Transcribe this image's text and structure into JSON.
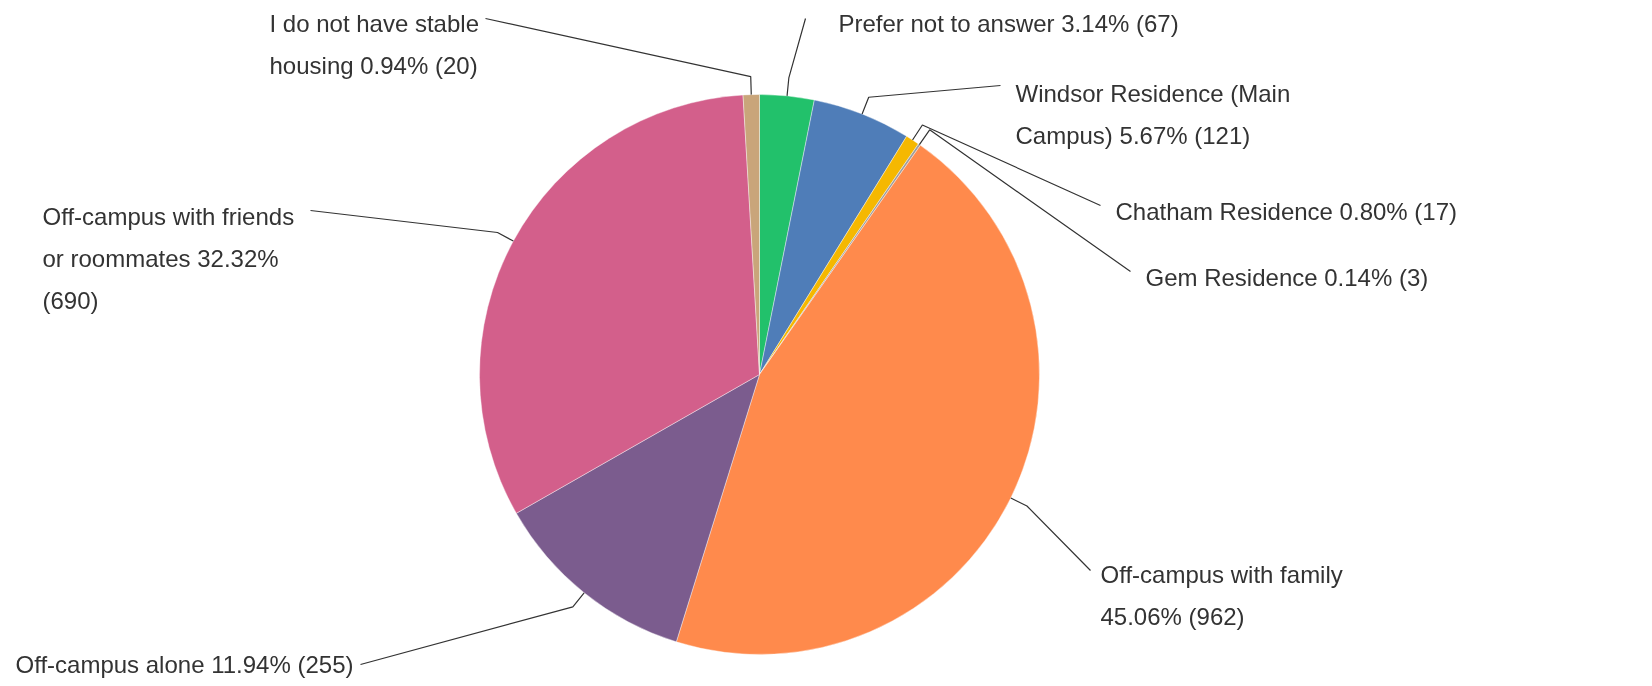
{
  "chart_data": {
    "type": "pie",
    "categories": [
      "Prefer not to answer",
      "Windsor Residence (Main Campus)",
      "Chatham Residence",
      "Gem Residence",
      "Off-campus with family",
      "Off-campus alone",
      "Off-campus with friends or roommates",
      "I do not have stable housing"
    ],
    "values": [
      67,
      121,
      17,
      3,
      962,
      255,
      690,
      20
    ],
    "value_labels": [
      "3.14% (67)",
      "5.67% (121)",
      "0.80% (17)",
      "0.14% (3)",
      "45.06% (962)",
      "11.94% (255)",
      "32.32% (690)",
      "0.94% (20)"
    ],
    "colors": [
      "#22c16b",
      "#4f7db8",
      "#f5b800",
      "#9e9e9e",
      "#ff8a4c",
      "#7b5c8e",
      "#d35f8b",
      "#c9a57a"
    ]
  }
}
